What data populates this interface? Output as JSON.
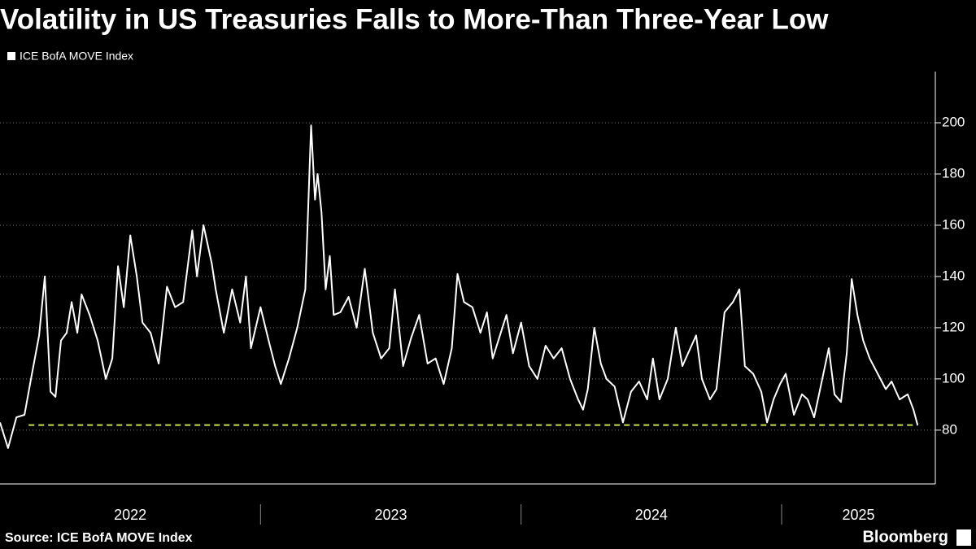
{
  "chart_data": {
    "type": "line",
    "title": "Volatility in US Treasuries Falls to More-Than Three-Year Low",
    "source": "Source: ICE BofA MOVE Index",
    "brand": "Bloomberg",
    "x": [
      2022,
      2022.031,
      2022.063,
      2022.094,
      2022.119,
      2022.15,
      2022.172,
      2022.194,
      2022.213,
      2022.234,
      2022.256,
      2022.275,
      2022.297,
      2022.313,
      2022.344,
      2022.375,
      2022.406,
      2022.431,
      2022.453,
      2022.475,
      2022.5,
      2022.525,
      2022.547,
      2022.578,
      2022.609,
      2022.641,
      2022.672,
      2022.703,
      2022.738,
      2022.756,
      2022.781,
      2022.813,
      2022.828,
      2022.859,
      2022.891,
      2022.922,
      2022.944,
      2022.963,
      2023,
      2023.031,
      2023.056,
      2023.078,
      2023.109,
      2023.141,
      2023.172,
      2023.194,
      2023.209,
      2023.219,
      2023.234,
      2023.25,
      2023.266,
      2023.281,
      2023.306,
      2023.338,
      2023.369,
      2023.4,
      2023.431,
      2023.463,
      2023.494,
      2023.516,
      2023.547,
      2023.578,
      2023.609,
      2023.641,
      2023.672,
      2023.703,
      2023.734,
      2023.756,
      2023.781,
      2023.813,
      2023.844,
      2023.869,
      2023.891,
      2023.922,
      2023.944,
      2023.969,
      2024,
      2024.031,
      2024.063,
      2024.094,
      2024.125,
      2024.156,
      2024.188,
      2024.219,
      2024.238,
      2024.256,
      2024.281,
      2024.306,
      2024.328,
      2024.359,
      2024.391,
      2024.422,
      2024.453,
      2024.484,
      2024.506,
      2024.531,
      2024.563,
      2024.594,
      2024.619,
      2024.641,
      2024.672,
      2024.694,
      2024.725,
      2024.75,
      2024.781,
      2024.813,
      2024.838,
      2024.859,
      2024.891,
      2024.922,
      2024.944,
      2024.969,
      2024.994,
      2025.016,
      2025.047,
      2025.078,
      2025.1,
      2025.125,
      2025.156,
      2025.181,
      2025.203,
      2025.228,
      2025.25,
      2025.269,
      2025.291,
      2025.313,
      2025.338,
      2025.369,
      2025.4,
      2025.422,
      2025.453,
      2025.484,
      2025.506,
      2025.522
    ],
    "series": [
      {
        "name": "ICE BofA MOVE Index",
        "color": "#ffffff",
        "values": [
          83,
          73,
          85,
          86,
          100,
          117,
          140,
          95,
          93,
          115,
          118,
          130,
          118,
          133,
          125,
          115,
          100,
          108,
          144,
          128,
          156,
          140,
          122,
          118,
          106,
          136,
          128,
          130,
          158,
          140,
          160,
          145,
          135,
          118,
          135,
          122,
          140,
          112,
          128,
          115,
          105,
          98,
          108,
          120,
          135,
          199,
          170,
          180,
          165,
          135,
          148,
          125,
          126,
          132,
          120,
          143,
          118,
          108,
          112,
          135,
          105,
          116,
          125,
          106,
          108,
          98,
          112,
          141,
          130,
          128,
          118,
          126,
          108,
          118,
          125,
          110,
          122,
          105,
          100,
          113,
          108,
          112,
          100,
          92,
          88,
          96,
          120,
          106,
          100,
          97,
          83,
          95,
          99,
          92,
          108,
          92,
          100,
          120,
          105,
          110,
          117,
          100,
          92,
          96,
          126,
          130,
          135,
          105,
          102,
          95,
          83,
          92,
          98,
          102,
          86,
          94,
          92,
          85,
          100,
          112,
          94,
          91,
          110,
          139,
          125,
          115,
          108,
          102,
          96,
          99,
          92,
          94,
          88,
          82
        ]
      }
    ],
    "reference_line": {
      "value": 82,
      "x_from": 2022.11,
      "color": "#c8e04a"
    },
    "xlim": [
      2022,
      2025.59
    ],
    "xticks": [
      {
        "value": 2022,
        "label": "2022"
      },
      {
        "value": 2023,
        "label": "2023"
      },
      {
        "value": 2024,
        "label": "2024"
      },
      {
        "value": 2025,
        "label": "2025"
      }
    ],
    "ylim": [
      59,
      220
    ],
    "yticks": [
      80,
      100,
      120,
      140,
      160,
      180,
      200
    ],
    "grid": true
  }
}
